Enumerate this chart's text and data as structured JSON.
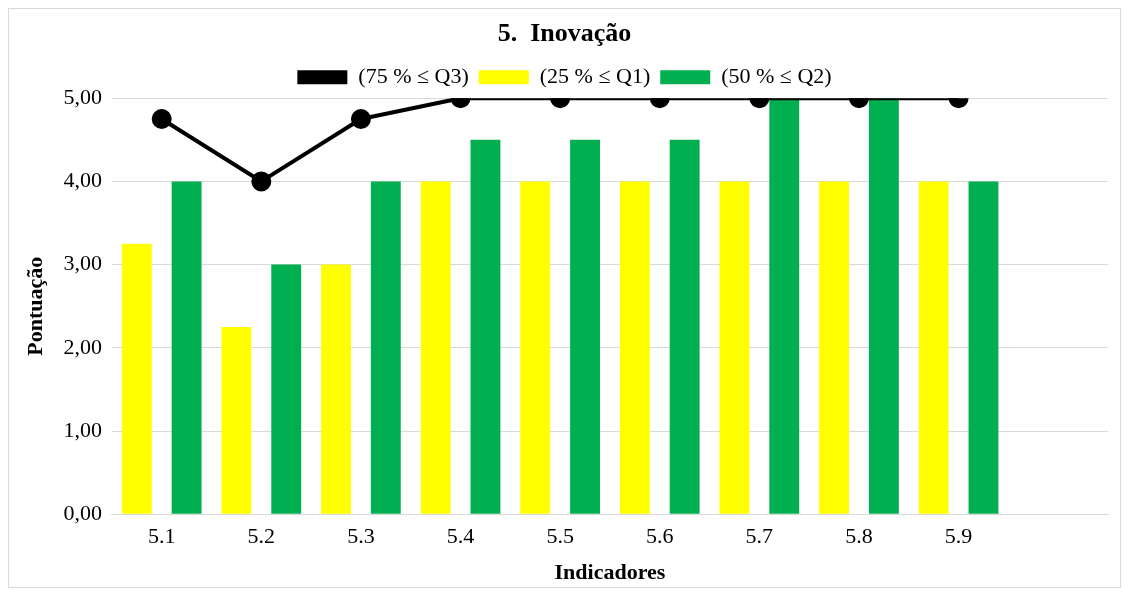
{
  "chart_data": {
    "type": "bar",
    "title": "5.  Inovação",
    "xlabel": "Indicadores",
    "ylabel": "Pontuação",
    "categories": [
      "5.1",
      "5.2",
      "5.3",
      "5.4",
      "5.5",
      "5.6",
      "5.7",
      "5.8",
      "5.9",
      null
    ],
    "series": [
      {
        "name": "(25 % ≤ Q1)",
        "color": "#ffff00",
        "values": [
          3.25,
          2.25,
          3.0,
          4,
          4,
          4,
          4,
          4,
          4,
          null
        ]
      },
      {
        "name": "(50 % ≤ Q2)",
        "color": "#00b050",
        "values": [
          4,
          3,
          4,
          4.5,
          4.5,
          4.5,
          5,
          5,
          4,
          null
        ]
      },
      {
        "name": "(75 % ≤ Q3)",
        "type": "line",
        "color": "#000000",
        "values": [
          4.75,
          4,
          4.75,
          5,
          5,
          5,
          5,
          5,
          5,
          null
        ]
      }
    ],
    "ylim": [
      0,
      5
    ],
    "yticks": [
      {
        "value": 0,
        "label": "0,00"
      },
      {
        "value": 1,
        "label": "1,00"
      },
      {
        "value": 2,
        "label": "2,00"
      },
      {
        "value": 3,
        "label": "3,00"
      },
      {
        "value": 4,
        "label": "4,00"
      },
      {
        "value": 5,
        "label": "5,00"
      }
    ],
    "grid": "y",
    "legend": "top",
    "marker": "circle",
    "line_style": "solid"
  }
}
